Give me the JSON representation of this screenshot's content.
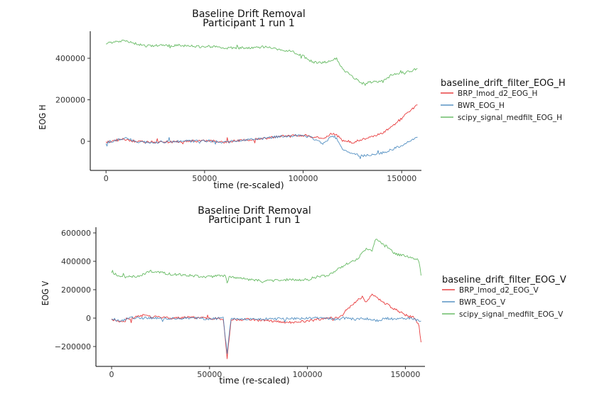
{
  "chart_data": [
    {
      "type": "line",
      "title": "Baseline Drift Removal",
      "subtitle": "Participant 1 run 1",
      "xlabel": "time (re-scaled)",
      "ylabel": "EOG H",
      "xlim": [
        -8000,
        160000
      ],
      "ylim": [
        -140000,
        530000
      ],
      "xticks": [
        0,
        50000,
        100000,
        150000
      ],
      "yticks": [
        0,
        200000,
        400000
      ],
      "legend_title": "baseline_drift_filter_EOG_H",
      "legend_position": "right",
      "grid": false,
      "series": [
        {
          "name": "BRP_lmod_d2_EOG_H",
          "color": "#e41a1c",
          "x": [
            0,
            5000,
            10000,
            15000,
            20000,
            30000,
            40000,
            50000,
            55000,
            60000,
            70000,
            80000,
            90000,
            100000,
            105000,
            110000,
            115000,
            117000,
            120000,
            125000,
            130000,
            135000,
            140000,
            145000,
            150000,
            155000,
            158000
          ],
          "y": [
            -5000,
            5000,
            10000,
            0,
            -5000,
            -3000,
            0,
            3000,
            0,
            -3000,
            5000,
            15000,
            25000,
            30000,
            20000,
            15000,
            40000,
            30000,
            5000,
            -5000,
            10000,
            20000,
            40000,
            70000,
            110000,
            155000,
            175000
          ]
        },
        {
          "name": "BWR_EOG_H",
          "color": "#377eb8",
          "x": [
            0,
            5000,
            10000,
            15000,
            20000,
            30000,
            40000,
            50000,
            55000,
            60000,
            70000,
            80000,
            90000,
            100000,
            105000,
            110000,
            115000,
            117000,
            120000,
            125000,
            130000,
            135000,
            140000,
            145000,
            150000,
            155000,
            158000
          ],
          "y": [
            -5000,
            5000,
            15000,
            0,
            -5000,
            -3000,
            0,
            3000,
            0,
            -5000,
            5000,
            15000,
            25000,
            30000,
            15000,
            -10000,
            25000,
            15000,
            -40000,
            -60000,
            -70000,
            -65000,
            -55000,
            -40000,
            -20000,
            5000,
            20000
          ]
        },
        {
          "name": "scipy_signal_medfilt_EOG_H",
          "color": "#4daf4a",
          "x": [
            0,
            5000,
            10000,
            15000,
            20000,
            30000,
            40000,
            50000,
            55000,
            60000,
            70000,
            80000,
            90000,
            95000,
            100000,
            105000,
            110000,
            115000,
            117000,
            120000,
            125000,
            130000,
            135000,
            140000,
            145000,
            150000,
            155000,
            158000
          ],
          "y": [
            470000,
            480000,
            485000,
            470000,
            460000,
            462000,
            460000,
            455000,
            458000,
            450000,
            450000,
            455000,
            440000,
            430000,
            410000,
            380000,
            380000,
            390000,
            400000,
            350000,
            310000,
            280000,
            285000,
            290000,
            320000,
            330000,
            340000,
            350000
          ]
        }
      ]
    },
    {
      "type": "line",
      "title": "Baseline Drift Removal",
      "subtitle": "Participant 1 run 1",
      "xlabel": "time (re-scaled)",
      "ylabel": "EOG V",
      "xlim": [
        -8000,
        160000
      ],
      "ylim": [
        -340000,
        640000
      ],
      "xticks": [
        0,
        50000,
        100000,
        150000
      ],
      "yticks": [
        -200000,
        0,
        200000,
        400000,
        600000
      ],
      "legend_title": "baseline_drift_filter_EOG_V",
      "legend_position": "right",
      "grid": false,
      "series": [
        {
          "name": "BRP_lmod_d2_EOG_V",
          "color": "#e41a1c",
          "x": [
            0,
            5000,
            10000,
            15000,
            20000,
            30000,
            40000,
            50000,
            57000,
            59000,
            61000,
            70000,
            80000,
            90000,
            100000,
            110000,
            115000,
            118000,
            120000,
            125000,
            128000,
            130000,
            133000,
            136000,
            140000,
            145000,
            150000,
            155000,
            157000,
            158000
          ],
          "y": [
            -10000,
            -30000,
            0,
            20000,
            10000,
            0,
            5000,
            0,
            -5000,
            -280000,
            -10000,
            -10000,
            -20000,
            -30000,
            -20000,
            0,
            0,
            20000,
            60000,
            120000,
            150000,
            110000,
            170000,
            140000,
            100000,
            60000,
            20000,
            0,
            -60000,
            -170000
          ]
        },
        {
          "name": "BWR_EOG_V",
          "color": "#377eb8",
          "x": [
            0,
            5000,
            10000,
            15000,
            20000,
            30000,
            40000,
            50000,
            57000,
            59000,
            61000,
            70000,
            80000,
            90000,
            100000,
            110000,
            115000,
            118000,
            120000,
            125000,
            130000,
            135000,
            140000,
            145000,
            150000,
            155000,
            158000
          ],
          "y": [
            -5000,
            -20000,
            5000,
            0,
            0,
            -5000,
            0,
            -5000,
            0,
            -250000,
            0,
            -10000,
            -5000,
            -5000,
            0,
            0,
            -10000,
            0,
            0,
            -10000,
            0,
            -20000,
            0,
            -10000,
            0,
            -10000,
            -20000
          ]
        },
        {
          "name": "scipy_signal_medfilt_EOG_V",
          "color": "#4daf4a",
          "x": [
            0,
            5000,
            10000,
            15000,
            20000,
            30000,
            40000,
            50000,
            55000,
            58000,
            59000,
            60000,
            70000,
            80000,
            90000,
            100000,
            105000,
            110000,
            115000,
            118000,
            120000,
            125000,
            130000,
            133000,
            135000,
            140000,
            145000,
            150000,
            155000,
            157000,
            158000
          ],
          "y": [
            320000,
            290000,
            290000,
            300000,
            330000,
            310000,
            300000,
            290000,
            300000,
            300000,
            240000,
            290000,
            270000,
            260000,
            270000,
            270000,
            290000,
            300000,
            340000,
            360000,
            380000,
            410000,
            490000,
            470000,
            560000,
            510000,
            450000,
            440000,
            420000,
            400000,
            300000
          ]
        }
      ]
    }
  ]
}
